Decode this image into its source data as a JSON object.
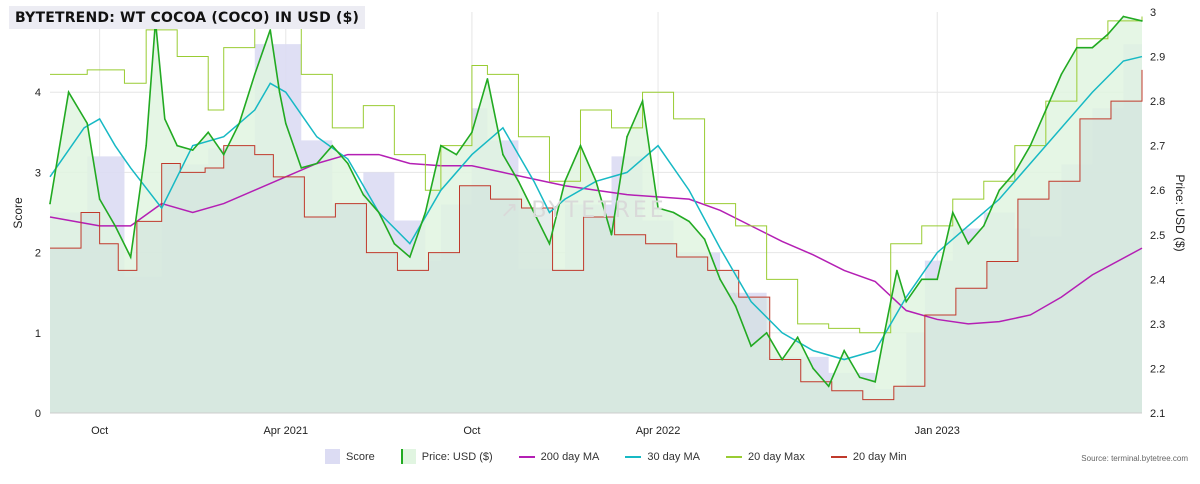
{
  "title": "BYTETREND: WT COCOA (COCO) IN USD ($)",
  "watermark": "BYTETREE",
  "source": "Source: terminal.bytetree.com",
  "colors": {
    "score": "#dcdcf3",
    "price_fill": "#e1f5e1",
    "price_line": "#22aa22",
    "ma200": "#b41fb4",
    "ma30": "#17b9c4",
    "max20": "#99cc33",
    "min20": "#c0392b",
    "overlap_fill": "#cfe0dc"
  },
  "chart_data": {
    "type": "line",
    "title": "BYTETREND: WT COCOA (COCO) IN USD ($)",
    "x_ticks": [
      "Oct",
      "Apr 2021",
      "Oct",
      "Apr 2022",
      "Jan 2023"
    ],
    "x_tick_pos": [
      1.0,
      7.0,
      13.0,
      19.0,
      28.0
    ],
    "x_range": [
      -0.6,
      34.6
    ],
    "y_left": {
      "label": "Score",
      "range": [
        0,
        5
      ],
      "ticks": [
        "0",
        "1",
        "2",
        "3",
        "4"
      ]
    },
    "y_right": {
      "label": "Price: USD ($)",
      "range": [
        2.1,
        3.0
      ],
      "ticks": [
        "2.1",
        "2.2",
        "2.3",
        "2.4",
        "2.5",
        "2.6",
        "2.7",
        "2.8",
        "2.9",
        "3"
      ]
    },
    "legend": [
      "Score",
      "Price: USD ($)",
      "200 day MA",
      "30 day MA",
      "20 day Max",
      "20 day Min"
    ],
    "legend_position": "bottom",
    "price": {
      "x": [
        -0.6,
        0.0,
        0.6,
        1.0,
        1.5,
        2.0,
        2.5,
        2.8,
        3.1,
        3.5,
        4.0,
        4.5,
        5.0,
        5.5,
        6.0,
        6.5,
        6.8,
        7.0,
        7.5,
        8.0,
        8.5,
        9.0,
        9.5,
        10.0,
        10.5,
        11.0,
        11.5,
        12.0,
        12.5,
        13.0,
        13.5,
        14.0,
        14.5,
        15.0,
        15.5,
        16.0,
        16.5,
        17.0,
        17.5,
        18.0,
        18.5,
        19.0,
        19.5,
        20.0,
        20.5,
        21.0,
        21.5,
        22.0,
        22.5,
        23.0,
        23.5,
        24.0,
        24.5,
        25.0,
        25.5,
        26.0,
        26.3,
        26.7,
        27.0,
        27.5,
        28.0,
        28.5,
        29.0,
        29.5,
        30.0,
        30.5,
        31.0,
        31.5,
        32.0,
        32.5,
        33.0,
        33.5,
        34.0,
        34.6
      ],
      "y": [
        2.57,
        2.82,
        2.75,
        2.58,
        2.52,
        2.45,
        2.7,
        2.98,
        2.76,
        2.7,
        2.69,
        2.73,
        2.68,
        2.75,
        2.86,
        2.96,
        2.82,
        2.75,
        2.65,
        2.66,
        2.7,
        2.66,
        2.59,
        2.55,
        2.48,
        2.45,
        2.55,
        2.7,
        2.68,
        2.73,
        2.85,
        2.68,
        2.62,
        2.55,
        2.48,
        2.62,
        2.7,
        2.62,
        2.5,
        2.72,
        2.8,
        2.56,
        2.55,
        2.53,
        2.49,
        2.4,
        2.34,
        2.25,
        2.28,
        2.22,
        2.27,
        2.2,
        2.16,
        2.24,
        2.18,
        2.17,
        2.28,
        2.42,
        2.35,
        2.4,
        2.4,
        2.55,
        2.48,
        2.52,
        2.6,
        2.64,
        2.7,
        2.78,
        2.86,
        2.92,
        2.92,
        2.95,
        2.99,
        2.98
      ]
    },
    "ma200": {
      "x": [
        -0.6,
        1.0,
        2.0,
        3.0,
        4.0,
        5.0,
        6.0,
        7.0,
        8.0,
        9.0,
        10.0,
        11.0,
        12.0,
        13.0,
        14.0,
        15.0,
        16.0,
        17.0,
        18.0,
        19.0,
        20.0,
        21.0,
        22.0,
        23.0,
        24.0,
        25.0,
        26.0,
        27.0,
        28.0,
        29.0,
        30.0,
        31.0,
        32.0,
        33.0,
        34.6
      ],
      "y": [
        2.54,
        2.52,
        2.52,
        2.57,
        2.55,
        2.57,
        2.6,
        2.63,
        2.66,
        2.68,
        2.68,
        2.66,
        2.655,
        2.655,
        2.64,
        2.625,
        2.61,
        2.6,
        2.59,
        2.585,
        2.58,
        2.555,
        2.52,
        2.485,
        2.455,
        2.42,
        2.395,
        2.33,
        2.31,
        2.3,
        2.305,
        2.32,
        2.36,
        2.41,
        2.47
      ]
    },
    "ma30": {
      "x": [
        -0.6,
        0.5,
        1.0,
        1.5,
        2.0,
        3.0,
        4.0,
        5.0,
        6.0,
        6.5,
        7.0,
        8.0,
        9.0,
        10.0,
        11.0,
        12.0,
        13.0,
        14.0,
        15.0,
        15.5,
        16.0,
        17.0,
        18.0,
        19.0,
        20.0,
        21.0,
        22.0,
        23.0,
        24.0,
        25.0,
        26.0,
        27.0,
        28.0,
        29.0,
        30.0,
        31.0,
        32.0,
        33.0,
        34.0,
        34.6
      ],
      "y": [
        2.63,
        2.74,
        2.76,
        2.7,
        2.65,
        2.56,
        2.7,
        2.72,
        2.78,
        2.84,
        2.82,
        2.72,
        2.67,
        2.55,
        2.48,
        2.6,
        2.68,
        2.74,
        2.62,
        2.55,
        2.58,
        2.62,
        2.64,
        2.7,
        2.6,
        2.47,
        2.35,
        2.28,
        2.24,
        2.22,
        2.24,
        2.36,
        2.46,
        2.52,
        2.58,
        2.66,
        2.74,
        2.82,
        2.89,
        2.9
      ]
    },
    "max20": {
      "x": [
        -0.6,
        0.6,
        1.2,
        1.8,
        2.5,
        3.5,
        4.5,
        5.0,
        6.0,
        6.5,
        7.5,
        8.5,
        9.5,
        10.5,
        11.5,
        12.0,
        13.0,
        13.5,
        14.5,
        15.5,
        16.5,
        17.5,
        18.5,
        19.5,
        20.5,
        21.5,
        22.5,
        23.5,
        24.5,
        25.5,
        26.5,
        27.5,
        28.5,
        29.5,
        30.5,
        31.5,
        32.5,
        33.5,
        34.6
      ],
      "y": [
        2.86,
        2.87,
        2.87,
        2.84,
        2.96,
        2.9,
        2.78,
        2.92,
        2.97,
        2.97,
        2.86,
        2.74,
        2.79,
        2.68,
        2.6,
        2.7,
        2.88,
        2.86,
        2.72,
        2.62,
        2.78,
        2.74,
        2.82,
        2.76,
        2.57,
        2.52,
        2.4,
        2.3,
        2.29,
        2.28,
        2.48,
        2.52,
        2.58,
        2.62,
        2.7,
        2.8,
        2.94,
        2.98,
        2.99
      ]
    },
    "min20": {
      "x": [
        -0.6,
        0.4,
        1.0,
        1.6,
        2.2,
        3.0,
        3.6,
        4.4,
        5.0,
        6.0,
        6.6,
        7.6,
        8.6,
        9.6,
        10.6,
        11.6,
        12.6,
        13.6,
        14.6,
        15.6,
        16.6,
        17.6,
        18.6,
        19.6,
        20.6,
        21.6,
        22.6,
        23.6,
        24.6,
        25.6,
        26.6,
        27.6,
        28.6,
        29.6,
        30.6,
        31.6,
        32.6,
        33.6,
        34.6
      ],
      "y": [
        2.47,
        2.55,
        2.48,
        2.42,
        2.53,
        2.66,
        2.64,
        2.65,
        2.7,
        2.68,
        2.63,
        2.54,
        2.57,
        2.46,
        2.42,
        2.46,
        2.61,
        2.58,
        2.56,
        2.42,
        2.54,
        2.5,
        2.48,
        2.45,
        2.42,
        2.36,
        2.22,
        2.17,
        2.15,
        2.13,
        2.16,
        2.32,
        2.38,
        2.44,
        2.58,
        2.62,
        2.76,
        2.8,
        2.87
      ]
    },
    "score": {
      "x": [
        -0.6,
        0.6,
        1.8,
        3.0,
        4.5,
        6.0,
        7.5,
        8.5,
        9.5,
        10.5,
        11.5,
        12.0,
        13.0,
        13.5,
        14.5,
        16.0,
        17.5,
        18.5,
        19.5,
        21.0,
        22.5,
        24.5,
        26.0,
        27.0,
        27.6,
        28.5,
        29.5,
        30.5,
        31.0,
        32.0,
        33.0,
        34.0,
        34.6
      ],
      "y": [
        2.5,
        3.2,
        1.7,
        3.1,
        3.3,
        4.6,
        3.4,
        2.6,
        3.0,
        2.4,
        1.9,
        2.6,
        3.8,
        3.4,
        1.8,
        2.6,
        3.2,
        2.4,
        2.0,
        1.5,
        0.7,
        0.5,
        0.3,
        1.0,
        1.9,
        2.3,
        2.5,
        2.3,
        2.2,
        3.1,
        3.8,
        4.6,
        5.0
      ]
    }
  }
}
